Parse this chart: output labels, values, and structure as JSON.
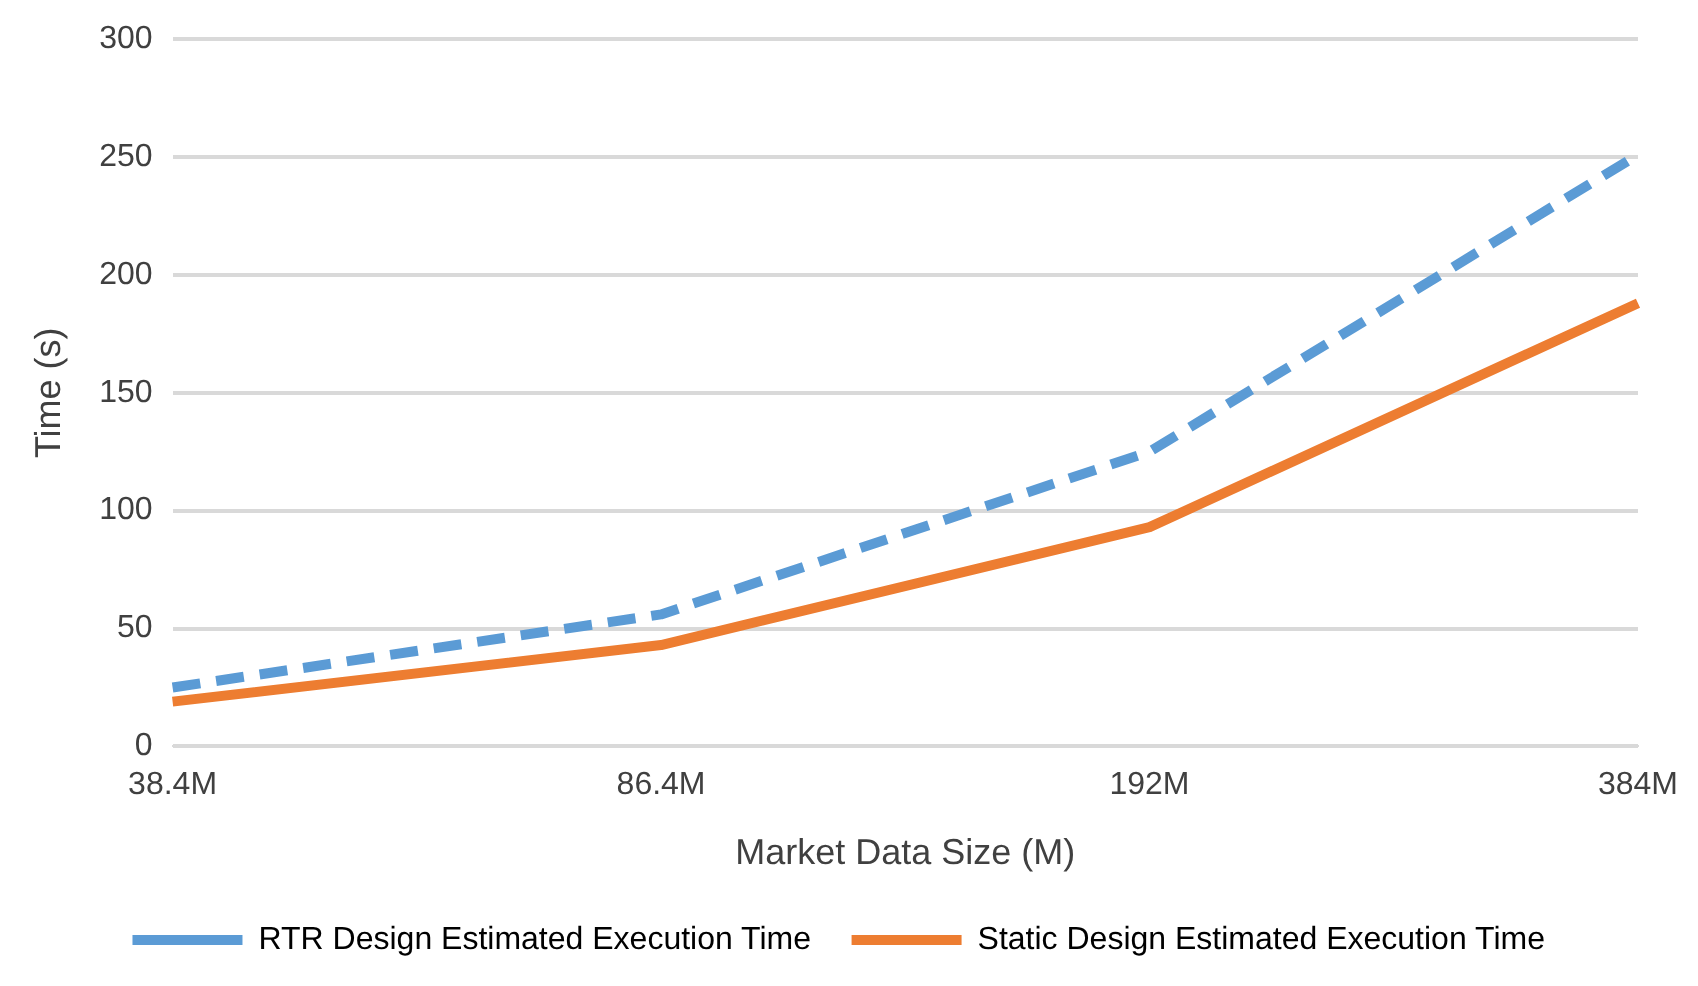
{
  "chart_data": {
    "type": "line",
    "xlabel": "Market Data Size (M)",
    "ylabel": "Time (s)",
    "categories": [
      "38.4M",
      "86.4M",
      "192M",
      "384M"
    ],
    "series": [
      {
        "name": "RTR Design Estimated Execution Time",
        "color": "#5b9bd5",
        "values": [
          25,
          56,
          125,
          251
        ],
        "line_style": "dashed"
      },
      {
        "name": "Static Design Estimated Execution Time",
        "color": "#ed7d31",
        "values": [
          19,
          43,
          93,
          188
        ],
        "line_style": "solid"
      }
    ],
    "ylim": [
      0,
      300
    ],
    "yticks": [
      0,
      50,
      100,
      150,
      200,
      250,
      300
    ],
    "grid": "y",
    "legend": "bottom",
    "marker": "none"
  }
}
